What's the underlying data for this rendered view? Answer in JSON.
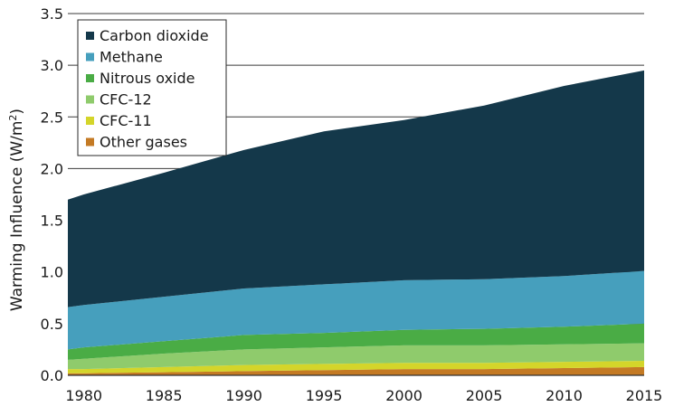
{
  "chart_data": {
    "type": "area",
    "stacked": true,
    "ylabel": "Warming Influence (W/m²)",
    "ylabel_main": "Warming Influence (W/m",
    "ylabel_sup": "2",
    "ylabel_close": ")",
    "xlabel": "",
    "title": "",
    "xlim": [
      1979,
      2015
    ],
    "ylim": [
      0,
      3.5
    ],
    "x_ticks": [
      1980,
      1985,
      1990,
      1995,
      2000,
      2005,
      2010,
      2015
    ],
    "y_ticks": [
      "0.0",
      "0.5",
      "1.0",
      "1.5",
      "2.0",
      "2.5",
      "3.0",
      "3.5"
    ],
    "grid": "horizontal",
    "legend_position": "top-left",
    "x": [
      1979,
      1980,
      1985,
      1990,
      1995,
      2000,
      2005,
      2010,
      2015
    ],
    "series": [
      {
        "name": "Other gases",
        "color": "#c47a24",
        "values": [
          0.02,
          0.02,
          0.03,
          0.04,
          0.05,
          0.06,
          0.06,
          0.07,
          0.08
        ]
      },
      {
        "name": "CFC-11",
        "color": "#d4d52a",
        "values": [
          0.04,
          0.04,
          0.05,
          0.06,
          0.06,
          0.06,
          0.06,
          0.06,
          0.06
        ]
      },
      {
        "name": "CFC-12",
        "color": "#8fcb6c",
        "values": [
          0.09,
          0.1,
          0.13,
          0.15,
          0.16,
          0.17,
          0.17,
          0.17,
          0.17
        ]
      },
      {
        "name": "Nitrous oxide",
        "color": "#4aac45",
        "values": [
          0.1,
          0.11,
          0.12,
          0.14,
          0.14,
          0.15,
          0.16,
          0.17,
          0.19
        ]
      },
      {
        "name": "Methane",
        "color": "#469fbd",
        "values": [
          0.41,
          0.41,
          0.43,
          0.45,
          0.47,
          0.48,
          0.48,
          0.49,
          0.51
        ]
      },
      {
        "name": "Carbon dioxide",
        "color": "#14384a",
        "values": [
          1.04,
          1.07,
          1.2,
          1.34,
          1.48,
          1.55,
          1.68,
          1.84,
          1.94
        ]
      }
    ],
    "legend_order": [
      "Carbon dioxide",
      "Methane",
      "Nitrous oxide",
      "CFC-12",
      "CFC-11",
      "Other gases"
    ]
  }
}
